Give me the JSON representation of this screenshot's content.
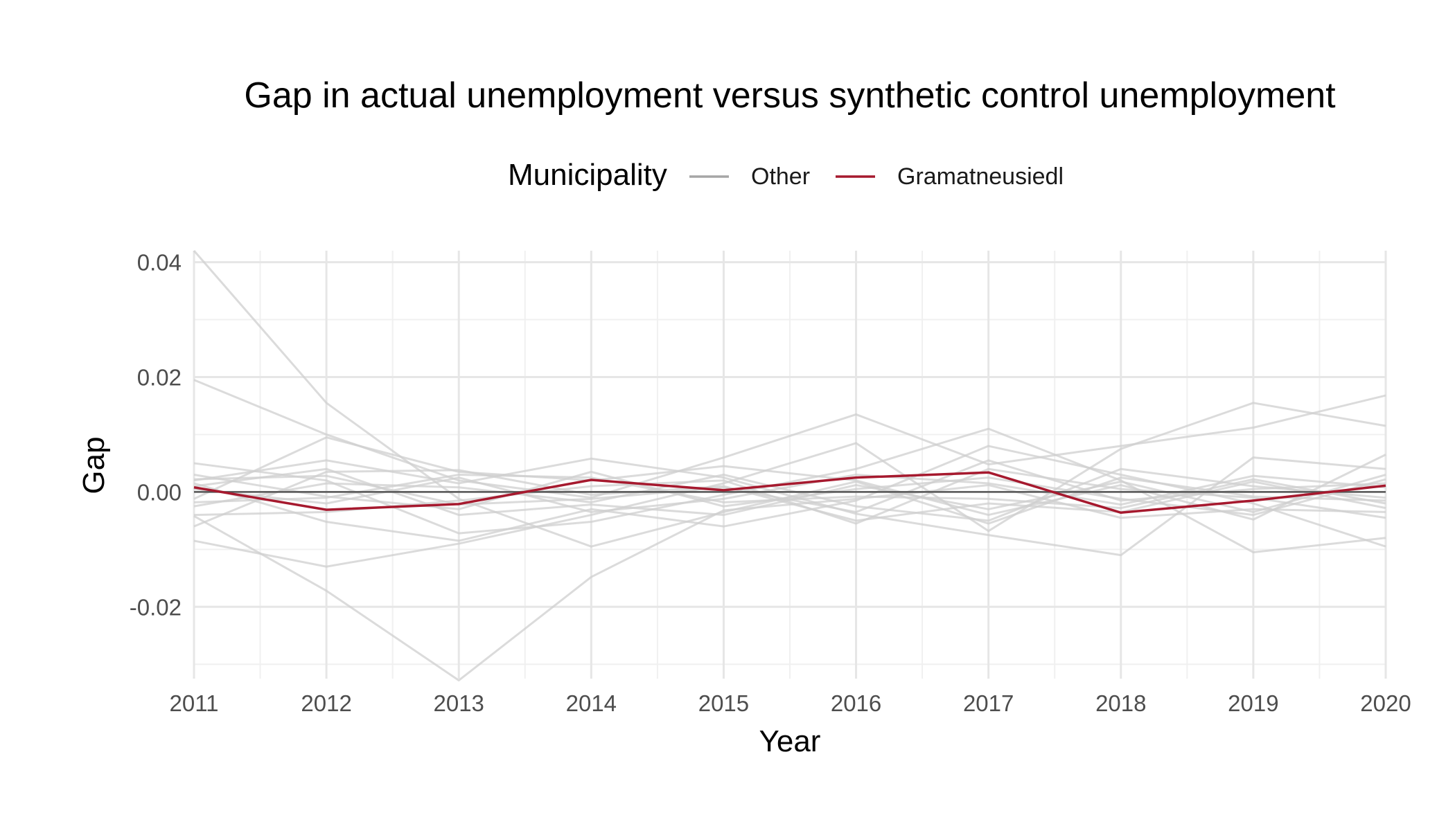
{
  "chart_data": {
    "type": "line",
    "title": "Gap in actual unemployment versus synthetic control unemployment",
    "xlabel": "Year",
    "ylabel": "Gap",
    "x": [
      2011,
      2012,
      2013,
      2014,
      2015,
      2016,
      2017,
      2018,
      2019,
      2020
    ],
    "xlim": [
      2011,
      2020
    ],
    "ylim": [
      -0.0325,
      0.042
    ],
    "y_ticks": [
      -0.02,
      0.0,
      0.02,
      0.04
    ],
    "y_tick_labels": [
      "-0.02",
      "0.00",
      "0.02",
      "0.04"
    ],
    "x_tick_labels": [
      "2011",
      "2012",
      "2013",
      "2014",
      "2015",
      "2016",
      "2017",
      "2018",
      "2019",
      "2020"
    ],
    "grid": true,
    "reference_line_y": 0.0,
    "legend": {
      "title": "Municipality",
      "position": "top",
      "entries": [
        {
          "label": "Other",
          "color": "#a6a6a6"
        },
        {
          "label": "Gramatneusiedl",
          "color": "#a6192e"
        }
      ]
    },
    "series": [
      {
        "name": "Gramatneusiedl",
        "color": "#a6192e",
        "values": [
          0.0008,
          -0.0031,
          -0.0021,
          0.0021,
          0.0003,
          0.0025,
          0.0034,
          -0.0036,
          -0.0015,
          0.0011
        ]
      }
    ],
    "other_series_color": "#cfcfcf",
    "other_series": [
      [
        0.042,
        0.0155,
        -0.0012,
        -0.0095,
        -0.0035,
        0.0018,
        -0.0055,
        0.0025,
        -0.0008,
        -0.0015
      ],
      [
        -0.0042,
        -0.0172,
        -0.0328,
        -0.0148,
        -0.0032,
        -0.0012,
        0.0012,
        -0.0045,
        -0.003,
        -0.0035
      ],
      [
        0.0195,
        0.01,
        0.002,
        -0.001,
        0.006,
        0.0135,
        0.0048,
        0.008,
        0.0112,
        0.0168
      ],
      [
        -0.0085,
        -0.013,
        -0.009,
        -0.004,
        0.0015,
        0.0085,
        -0.0068,
        0.0075,
        0.0155,
        0.0115
      ],
      [
        0.005,
        0.002,
        -0.0072,
        -0.0052,
        -0.0005,
        0.004,
        0.011,
        0.002,
        -0.0105,
        -0.008
      ],
      [
        0.002,
        0.0055,
        0.0015,
        0.0058,
        0.0025,
        -0.0038,
        -0.0075,
        -0.011,
        0.006,
        0.004
      ],
      [
        -0.0012,
        0.0095,
        0.0035,
        0.002,
        0.0045,
        0.002,
        -0.004,
        0.0012,
        -0.0048,
        0.0065
      ],
      [
        0.0015,
        -0.0052,
        -0.0085,
        -0.003,
        -0.006,
        -0.0015,
        0.008,
        0.003,
        -0.002,
        -0.0095
      ],
      [
        -0.006,
        0.0035,
        0.0038,
        -0.0005,
        0.001,
        -0.005,
        -0.002,
        -0.0035,
        0.0018,
        -0.0028
      ],
      [
        0.003,
        -0.0008,
        -0.003,
        0.0035,
        -0.0025,
        0.0005,
        0.0025,
        -0.0012,
        -0.004,
        0.0022
      ],
      [
        -0.0025,
        0.0015,
        0.0008,
        -0.0018,
        0.003,
        -0.0025,
        -0.005,
        0.004,
        0.001,
        -0.001
      ],
      [
        0.0005,
        -0.002,
        0.0025,
        -0.0035,
        -0.0012,
        0.003,
        0.0015,
        -0.0022,
        0.0028,
        0.0008
      ],
      [
        -0.004,
        -0.0035,
        -0.0015,
        0.001,
        0.002,
        -0.0055,
        0.004,
        0.0005,
        -0.001,
        -0.0045
      ],
      [
        0.001,
        0.004,
        -0.004,
        -0.0022,
        -0.004,
        0.0012,
        -0.003,
        0.0018,
        -0.0035,
        0.003
      ],
      [
        -0.0018,
        -0.001,
        0.003,
        0.0025,
        -0.0018,
        -0.0008,
        -0.0012,
        -0.0028,
        0.0022,
        -0.002
      ],
      [
        0.0022,
        0.0028,
        -0.0022,
        -0.0012,
        0.0008,
        -0.0035,
        0.0055,
        -0.0015,
        0.0005,
        0.0015
      ]
    ]
  }
}
